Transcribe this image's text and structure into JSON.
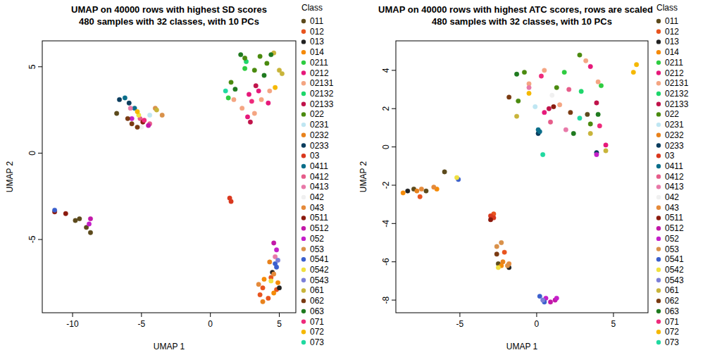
{
  "chart_data": [
    {
      "type": "scatter",
      "title": "UMAP on 40000 rows with highest SD scores",
      "subtitle": "480 samples with 32 classes, with 10 PCs",
      "x_label": "UMAP 1",
      "y_label": "UMAP 2",
      "legend_title": "Class",
      "legend": "right",
      "xlim": [
        -12.2,
        6.2
      ],
      "ylim": [
        -9.24,
        6.5
      ],
      "xticks": [
        -10,
        -5,
        0,
        5
      ],
      "yticks": [
        -5,
        0,
        5
      ],
      "series": [
        {
          "name": "011",
          "color": "#5c4a1c",
          "x": [
            -9.5,
            -9,
            -8.7,
            -9.8,
            -6.8
          ],
          "y": [
            -3.8,
            -4.3,
            -4.6,
            -3.9,
            2.3
          ]
        },
        {
          "name": "012",
          "color": "#e8541e",
          "x": [
            3.8,
            4.2,
            3.6,
            4.8,
            4.4
          ],
          "y": [
            -7.8,
            -8.4,
            -8.2,
            -7.9,
            -7.2
          ]
        },
        {
          "name": "013",
          "color": "#222222",
          "x": [
            4.5,
            5
          ],
          "y": [
            -6.9,
            -7.8
          ]
        },
        {
          "name": "014",
          "color": "#f58a07",
          "x": [
            4.9,
            3.9,
            4.6
          ],
          "y": [
            -7.5,
            -7.3,
            -8.1
          ]
        },
        {
          "name": "0211",
          "color": "#2ecc40",
          "x": [
            1.3,
            2.5
          ],
          "y": [
            3.2,
            4.9
          ]
        },
        {
          "name": "0212",
          "color": "#e6197a",
          "x": [
            2.8,
            3.5,
            4.2,
            2.7
          ],
          "y": [
            3.4,
            3.6,
            2.9,
            2.1
          ]
        },
        {
          "name": "02131",
          "color": "#f4a582",
          "x": [
            1.7,
            2.3,
            3.2,
            3.7,
            4.3
          ],
          "y": [
            3.1,
            2.6,
            2.3,
            3.1,
            3.6
          ]
        },
        {
          "name": "02132",
          "color": "#1ed66b",
          "x": [
            2.6
          ],
          "y": [
            5.3
          ]
        },
        {
          "name": "02133",
          "color": "#c0134a",
          "x": [
            3.3,
            2.9
          ],
          "y": [
            3.9,
            1.8
          ]
        },
        {
          "name": "022",
          "color": "#4a8a0f",
          "x": [
            3.6,
            4.1,
            2.5,
            1.5,
            3.2
          ],
          "y": [
            5.6,
            5.2,
            5.5,
            4.1,
            4.8
          ]
        },
        {
          "name": "0231",
          "color": "#bfe6f2",
          "x": [
            -4.4
          ],
          "y": [
            2.2
          ]
        },
        {
          "name": "0232",
          "color": "#e8821c",
          "x": [
            4.3,
            3.8
          ],
          "y": [
            -6.3,
            -8.6
          ]
        },
        {
          "name": "0233",
          "color": "#0b3d5e",
          "x": [
            -6.6,
            -5.9
          ],
          "y": [
            3.1,
            2.9
          ]
        },
        {
          "name": "03",
          "color": "#d9381e",
          "x": [
            1.4,
            1.5
          ],
          "y": [
            -2.6,
            -2.8
          ]
        },
        {
          "name": "0411",
          "color": "#0a6e8a",
          "x": [
            -6.2,
            -5.5
          ],
          "y": [
            3.2,
            2.6
          ]
        },
        {
          "name": "0412",
          "color": "#e65c8a",
          "x": [
            -5.1,
            -4.4
          ],
          "y": [
            2.0,
            1.7
          ]
        },
        {
          "name": "0413",
          "color": "#e879a8",
          "x": [
            -5.8,
            4.7
          ],
          "y": [
            2.6,
            -6.0
          ]
        },
        {
          "name": "042",
          "color": "#f0f0f0",
          "x": [
            -5
          ],
          "y": [
            1.5
          ]
        },
        {
          "name": "043",
          "color": "#e58a3a",
          "x": [
            4.6,
            3.5
          ],
          "y": [
            -7.0,
            -7.6
          ]
        },
        {
          "name": "0511",
          "color": "#8b1a0e",
          "x": [
            -11.3,
            -10.5,
            -4.9
          ],
          "y": [
            -3.4,
            -3.5,
            1.8
          ]
        },
        {
          "name": "0512",
          "color": "#c218a8",
          "x": [
            4.6,
            -4.5,
            -8.7
          ],
          "y": [
            -5.2,
            1.6,
            -3.8
          ]
        },
        {
          "name": "052",
          "color": "#c41fc9",
          "x": [
            4.8,
            -8.8,
            -5.7
          ],
          "y": [
            -5.6,
            -4.1,
            2.0
          ]
        },
        {
          "name": "053",
          "color": "#d9914a",
          "x": [
            -4,
            -3.5
          ],
          "y": [
            2.6,
            2.2
          ]
        },
        {
          "name": "0541",
          "color": "#3a5fcd",
          "x": [
            4.7,
            4.8,
            -11.3
          ],
          "y": [
            -6.4,
            -6.6,
            -3.3
          ]
        },
        {
          "name": "0542",
          "color": "#f0e040",
          "x": [
            4.4,
            -5.2
          ],
          "y": [
            -7.4,
            2.2
          ]
        },
        {
          "name": "0543",
          "color": "#7b7fd8",
          "x": [
            4.9
          ],
          "y": [
            -6.2
          ]
        },
        {
          "name": "061",
          "color": "#c8b43a",
          "x": [
            -3.9,
            5,
            5.2,
            4.6
          ],
          "y": [
            2.5,
            4.8,
            4.6,
            5.8
          ]
        },
        {
          "name": "062",
          "color": "#7a3b12",
          "x": [
            -5.7,
            -5.3,
            -6
          ],
          "y": [
            1.7,
            1.5,
            2.0
          ]
        },
        {
          "name": "063",
          "color": "#1f7a1f",
          "x": [
            2.2,
            1.8,
            3.9,
            4.4
          ],
          "y": [
            5.7,
            3.7,
            4.5,
            5.7
          ]
        },
        {
          "name": "071",
          "color": "#ee2a7b",
          "x": [
            -4.8,
            3
          ],
          "y": [
            1.9,
            3
          ]
        },
        {
          "name": "072",
          "color": "#f5b800",
          "x": [
            -5.3,
            4.7
          ],
          "y": [
            2.4,
            3.8
          ]
        },
        {
          "name": "073",
          "color": "#20d9a0",
          "x": [
            1.1
          ],
          "y": [
            3.6
          ]
        }
      ]
    },
    {
      "type": "scatter",
      "title": "UMAP on 40000 rows with highest ATC scores, rows are scaled",
      "subtitle": "480 samples with 32 classes, with 10 PCs",
      "x_label": "UMAP 1",
      "y_label": "UMAP 2",
      "legend_title": "Class",
      "legend": "right",
      "xlim": [
        -9.17,
        7.25
      ],
      "ylim": [
        -8.66,
        5.54
      ],
      "xticks": [
        -5,
        0,
        5
      ],
      "yticks": [
        -8,
        -6,
        -4,
        -2,
        0,
        2,
        4
      ],
      "series": [
        {
          "name": "011",
          "color": "#5c4a1c",
          "x": [
            -8,
            -7.2,
            -6,
            -2.5,
            3.3
          ],
          "y": [
            -2.2,
            -2.3,
            -1.3,
            -6.1,
            1.7
          ]
        },
        {
          "name": "012",
          "color": "#e8541e",
          "x": [
            -2.8,
            -2.1,
            -7.6
          ],
          "y": [
            -3.5,
            -5.5,
            -2.6
          ]
        },
        {
          "name": "013",
          "color": "#222222",
          "x": [
            -1.8,
            -8.4
          ],
          "y": [
            -6.3,
            -2.3
          ]
        },
        {
          "name": "014",
          "color": "#f58a07",
          "x": [
            -8.7,
            -6.5,
            -2.3
          ],
          "y": [
            -2.4,
            -2.2,
            -6.2
          ]
        },
        {
          "name": "0211",
          "color": "#2ecc40",
          "x": [
            4.2,
            1.8
          ],
          "y": [
            3.2,
            3.9
          ]
        },
        {
          "name": "0212",
          "color": "#e6197a",
          "x": [
            3.5,
            0.5,
            4.5
          ],
          "y": [
            4.2,
            1.8,
            0.1
          ]
        },
        {
          "name": "02131",
          "color": "#f4a582",
          "x": [
            3.2,
            -0.5,
            4,
            1.5,
            0.5
          ],
          "y": [
            4.5,
            3.3,
            3.4,
            2.2,
            4
          ]
        },
        {
          "name": "02132",
          "color": "#1ed66b",
          "x": [
            2.9
          ],
          "y": [
            2.9
          ]
        },
        {
          "name": "02133",
          "color": "#c0134a",
          "x": [
            3.9,
            0.8
          ],
          "y": [
            2.3,
            2.0
          ]
        },
        {
          "name": "022",
          "color": "#4a8a0f",
          "x": [
            -0.8,
            2.8,
            -1.2,
            3.5,
            1.3
          ],
          "y": [
            3.9,
            4.8,
            2.4,
            1.2,
            3.1
          ]
        },
        {
          "name": "0231",
          "color": "#bfe6f2",
          "x": [
            -0.1
          ],
          "y": [
            2.1
          ]
        },
        {
          "name": "0232",
          "color": "#e8821c",
          "x": [
            -7.8,
            -2.2
          ],
          "y": [
            -2.3,
            -6.0
          ]
        },
        {
          "name": "0233",
          "color": "#0b3d5e",
          "x": [
            0.1,
            3.9
          ],
          "y": [
            0.7,
            -0.3
          ]
        },
        {
          "name": "03",
          "color": "#d9381e",
          "x": [
            -3,
            -2.8
          ],
          "y": [
            -3.6,
            -3.7
          ]
        },
        {
          "name": "0411",
          "color": "#0a6e8a",
          "x": [
            0.2,
            0.1
          ],
          "y": [
            0.8,
            0.9
          ]
        },
        {
          "name": "0412",
          "color": "#e65c8a",
          "x": [
            2.1,
            0.9
          ],
          "y": [
            3.0,
            1.3
          ]
        },
        {
          "name": "0413",
          "color": "#e879a8",
          "x": [
            1.9,
            -0.5
          ],
          "y": [
            0.9,
            3.1
          ]
        },
        {
          "name": "042",
          "color": "#f0f0f0",
          "x": [
            1.0
          ],
          "y": [
            2.7
          ]
        },
        {
          "name": "043",
          "color": "#e58a3a",
          "x": [
            -1.8,
            -6.7,
            -7.5
          ],
          "y": [
            -6.1,
            -2.1,
            -2.2
          ]
        },
        {
          "name": "0511",
          "color": "#8b1a0e",
          "x": [
            1.1,
            -3
          ],
          "y": [
            2.1,
            -3.8
          ]
        },
        {
          "name": "0512",
          "color": "#c218a8",
          "x": [
            1.2,
            0.9
          ],
          "y": [
            -8.0,
            -8.1
          ]
        },
        {
          "name": "052",
          "color": "#c41fc9",
          "x": [
            0.6,
            1.3,
            3.9
          ],
          "y": [
            -7.9,
            -7.9,
            -0.4
          ]
        },
        {
          "name": "053",
          "color": "#d9914a",
          "x": [
            -2.6,
            -2.3,
            -1.9
          ],
          "y": [
            -5.2,
            -5.0,
            -6.2
          ]
        },
        {
          "name": "0541",
          "color": "#3a5fcd",
          "x": [
            0.2,
            -5.1,
            0.5
          ],
          "y": [
            -7.8,
            -1.7,
            -8.1
          ]
        },
        {
          "name": "0542",
          "color": "#f0e040",
          "x": [
            -2.5,
            -5.2
          ],
          "y": [
            -6.3,
            -1.6
          ]
        },
        {
          "name": "0543",
          "color": "#7b7fd8",
          "x": [
            0.4
          ],
          "y": [
            -8.0
          ]
        },
        {
          "name": "061",
          "color": "#c8b43a",
          "x": [
            4.5,
            3.5,
            -1.3
          ],
          "y": [
            -0.2,
            0.7,
            1.6
          ]
        },
        {
          "name": "062",
          "color": "#7a3b12",
          "x": [
            2.2,
            -1.8,
            -2.6
          ],
          "y": [
            1.8,
            2.6,
            -5.6
          ]
        },
        {
          "name": "063",
          "color": "#1f7a1f",
          "x": [
            -1.3,
            4,
            2.4
          ],
          "y": [
            3.8,
            1.7,
            0.7
          ]
        },
        {
          "name": "071",
          "color": "#ee2a7b",
          "x": [
            0.3,
            4.1
          ],
          "y": [
            3.7,
            1.1
          ]
        },
        {
          "name": "072",
          "color": "#f5b800",
          "x": [
            6.5,
            6.3,
            -0.5
          ],
          "y": [
            4.3,
            3.9,
            2.8
          ]
        },
        {
          "name": "073",
          "color": "#20d9a0",
          "x": [
            0.4,
            2.8
          ],
          "y": [
            -0.4,
            1.5
          ]
        }
      ]
    }
  ]
}
